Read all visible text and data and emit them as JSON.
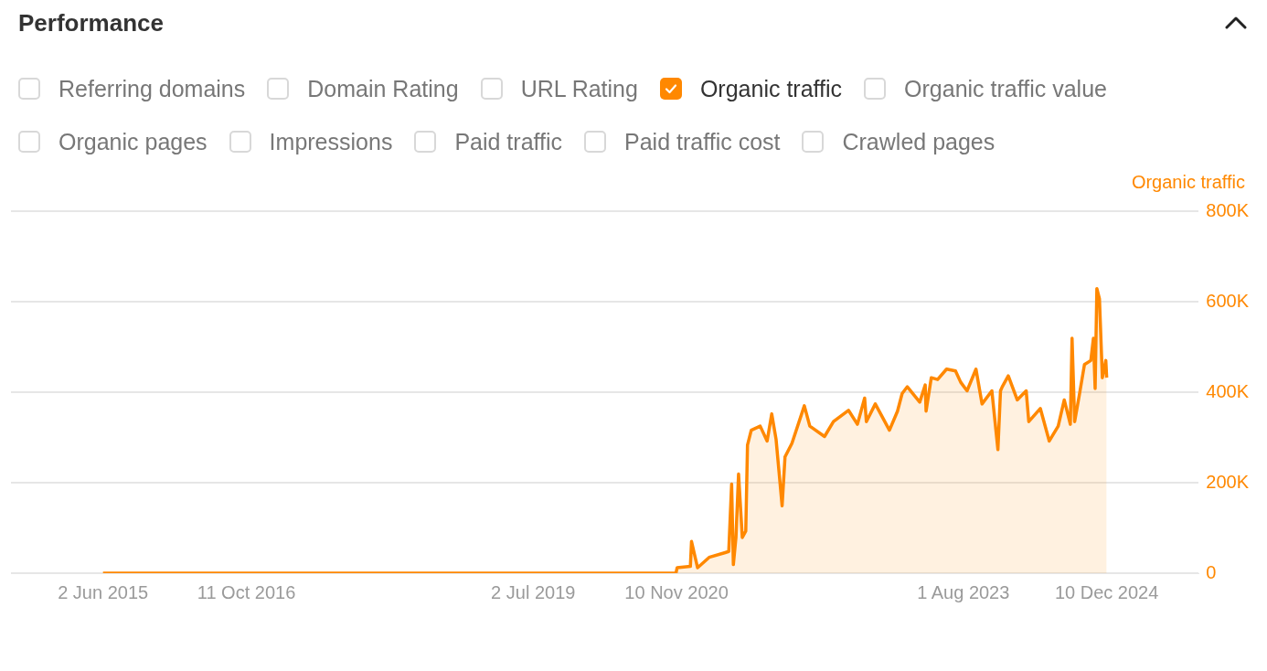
{
  "chart_data": {
    "type": "area",
    "title": "Performance",
    "ylabel": "Organic traffic",
    "legend": "top",
    "grid": "y",
    "annotations": [
      "Referring domains",
      "Domain Rating",
      "URL Rating",
      "Organic traffic value",
      "Organic pages",
      "Impressions",
      "Paid traffic",
      "Paid traffic cost",
      "Crawled pages"
    ],
    "xlim": [
      "2014-07-18",
      "2025-10-25"
    ],
    "xticks": [
      {
        "value": "2015-06-02",
        "label": "2 Jun 2015"
      },
      {
        "value": "2016-10-11",
        "label": "11 Oct 2016"
      },
      {
        "value": "2019-07-02",
        "label": "2 Jul 2019"
      },
      {
        "value": "2020-11-10",
        "label": "10 Nov 2020"
      },
      {
        "value": "2023-08-01",
        "label": "1 Aug 2023"
      },
      {
        "value": "2024-12-10",
        "label": "10 Dec 2024"
      }
    ],
    "ylim": [
      0,
      800000
    ],
    "yticks": [
      0,
      {
        "value": 200000,
        "label": "200K"
      },
      {
        "value": 400000,
        "label": "400K"
      },
      {
        "value": 600000,
        "label": "600K"
      },
      {
        "value": 800000,
        "label": "800K"
      }
    ],
    "series": [
      {
        "name": "Organic traffic",
        "color": "#ff8800",
        "x": [
          "2015-06-02",
          "2020-11-08",
          "2020-11-12",
          "2020-12-28",
          "2021-01-01",
          "2021-01-22",
          "2021-03-03",
          "2021-04-25",
          "2021-05-10",
          "2021-05-20",
          "2021-05-26",
          "2021-06-04",
          "2021-06-13",
          "2021-06-26",
          "2021-07-08",
          "2021-07-14",
          "2021-07-27",
          "2021-08-27",
          "2021-09-20",
          "2021-10-06",
          "2021-10-21",
          "2021-11-11",
          "2021-11-21",
          "2021-12-15",
          "2022-01-27",
          "2022-02-15",
          "2022-04-07",
          "2022-05-08",
          "2022-06-29",
          "2022-07-30",
          "2022-08-24",
          "2022-08-30",
          "2022-09-30",
          "2022-11-18",
          "2022-12-16",
          "2023-01-01",
          "2023-01-19",
          "2023-03-03",
          "2023-03-22",
          "2023-03-25",
          "2023-04-12",
          "2023-05-04",
          "2023-06-04",
          "2023-07-05",
          "2023-07-23",
          "2023-08-14",
          "2023-09-14",
          "2023-10-05",
          "2023-11-08",
          "2023-11-29",
          "2023-12-08",
          "2023-12-14",
          "2024-01-04",
          "2024-02-04",
          "2024-03-06",
          "2024-03-15",
          "2024-04-24",
          "2024-05-25",
          "2024-06-25",
          "2024-07-16",
          "2024-08-06",
          "2024-08-12",
          "2024-08-21",
          "2024-09-06",
          "2024-09-24",
          "2024-10-16",
          "2024-10-25",
          "2024-10-31",
          "2024-11-06",
          "2024-11-15",
          "2024-11-25",
          "2024-12-07",
          "2024-12-10"
        ],
        "values": [
          0,
          0,
          12000,
          15000,
          70000,
          12000,
          35000,
          45000,
          48000,
          197000,
          19000,
          79000,
          219000,
          79000,
          93000,
          283000,
          316000,
          325000,
          292000,
          352000,
          296000,
          149000,
          257000,
          287000,
          370000,
          325000,
          302000,
          335000,
          360000,
          329000,
          387000,
          335000,
          374000,
          316000,
          358000,
          397000,
          412000,
          378000,
          416000,
          358000,
          432000,
          428000,
          451000,
          447000,
          422000,
          403000,
          451000,
          374000,
          403000,
          273000,
          403000,
          412000,
          436000,
          383000,
          403000,
          335000,
          364000,
          292000,
          325000,
          383000,
          329000,
          519000,
          335000,
          393000,
          461000,
          470000,
          519000,
          408000,
          629000,
          606000,
          432000,
          470000,
          432000
        ]
      }
    ]
  }
}
